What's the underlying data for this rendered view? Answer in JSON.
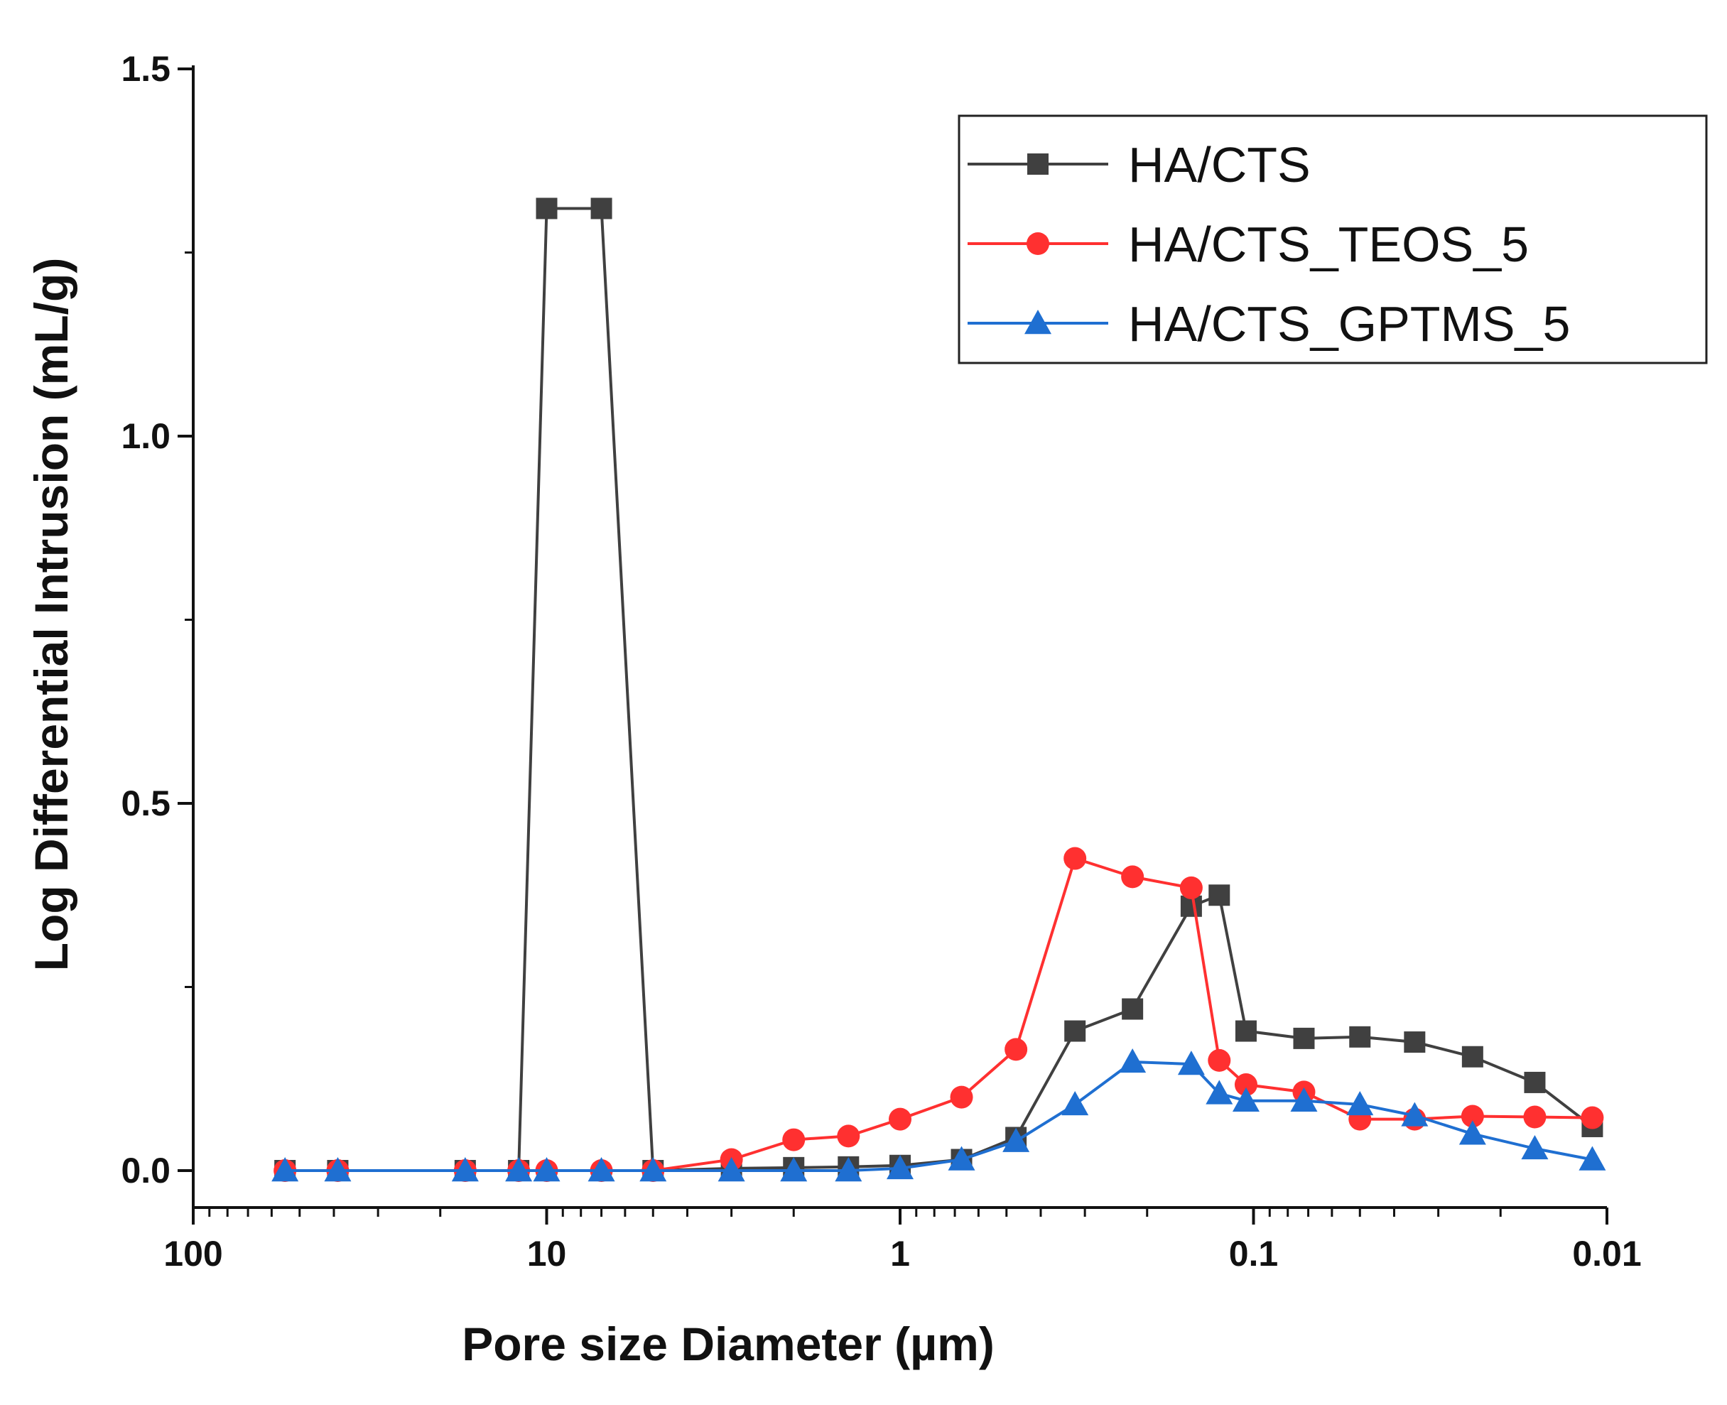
{
  "chart_data": {
    "type": "line",
    "xlabel": "Pore size Diameter (µm)",
    "ylabel": "Log Differential Intrusion (mL/g)",
    "x_scale": "log",
    "x_reversed": true,
    "xlim": [
      100,
      0.01
    ],
    "ylim": [
      -0.05,
      1.5
    ],
    "x_ticks": [
      {
        "value": 100,
        "label": "100"
      },
      {
        "value": 10,
        "label": "10"
      },
      {
        "value": 1,
        "label": "1"
      },
      {
        "value": 0.1,
        "label": "0.1"
      },
      {
        "value": 0.01,
        "label": "0.01"
      }
    ],
    "y_ticks": [
      {
        "value": 0.0,
        "label": "0.0"
      },
      {
        "value": 0.5,
        "label": "0.5"
      },
      {
        "value": 1.0,
        "label": "1.0"
      },
      {
        "value": 1.5,
        "label": "1.5"
      }
    ],
    "grid": false,
    "legend_position": "top-right",
    "series": [
      {
        "name": "HA/CTS",
        "color": "#404040",
        "marker": "square",
        "points": [
          [
            55,
            0.0
          ],
          [
            39,
            0.0
          ],
          [
            17,
            0.0
          ],
          [
            12,
            0.0
          ],
          [
            10,
            1.31
          ],
          [
            7,
            1.31
          ],
          [
            5,
            0.0
          ],
          [
            3,
            0.003
          ],
          [
            2,
            0.004
          ],
          [
            1.4,
            0.005
          ],
          [
            1.0,
            0.007
          ],
          [
            0.67,
            0.015
          ],
          [
            0.47,
            0.045
          ],
          [
            0.32,
            0.19
          ],
          [
            0.22,
            0.22
          ],
          [
            0.15,
            0.36
          ],
          [
            0.125,
            0.375
          ],
          [
            0.105,
            0.19
          ],
          [
            0.072,
            0.18
          ],
          [
            0.05,
            0.182
          ],
          [
            0.035,
            0.175
          ],
          [
            0.024,
            0.155
          ],
          [
            0.016,
            0.12
          ],
          [
            0.011,
            0.06
          ]
        ]
      },
      {
        "name": "HA/CTS_TEOS_5",
        "color": "#ff3030",
        "marker": "circle",
        "points": [
          [
            55,
            0.0
          ],
          [
            39,
            0.0
          ],
          [
            17,
            0.0
          ],
          [
            12,
            0.0
          ],
          [
            10,
            0.0
          ],
          [
            7,
            0.0
          ],
          [
            5,
            0.0
          ],
          [
            3,
            0.015
          ],
          [
            2,
            0.042
          ],
          [
            1.4,
            0.047
          ],
          [
            1.0,
            0.07
          ],
          [
            0.67,
            0.1
          ],
          [
            0.47,
            0.165
          ],
          [
            0.32,
            0.425
          ],
          [
            0.22,
            0.4
          ],
          [
            0.15,
            0.385
          ],
          [
            0.125,
            0.15
          ],
          [
            0.105,
            0.117
          ],
          [
            0.072,
            0.107
          ],
          [
            0.05,
            0.07
          ],
          [
            0.035,
            0.07
          ],
          [
            0.024,
            0.074
          ],
          [
            0.016,
            0.073
          ],
          [
            0.011,
            0.072
          ]
        ]
      },
      {
        "name": "HA/CTS_GPTMS_5",
        "color": "#1f6fd1",
        "marker": "triangle",
        "points": [
          [
            55,
            0.0
          ],
          [
            39,
            0.0
          ],
          [
            17,
            0.0
          ],
          [
            12,
            0.0
          ],
          [
            10,
            0.0
          ],
          [
            7,
            0.0
          ],
          [
            5,
            0.0
          ],
          [
            3,
            0.0
          ],
          [
            2,
            0.0
          ],
          [
            1.4,
            0.0
          ],
          [
            1.0,
            0.003
          ],
          [
            0.67,
            0.015
          ],
          [
            0.47,
            0.04
          ],
          [
            0.32,
            0.09
          ],
          [
            0.22,
            0.148
          ],
          [
            0.15,
            0.145
          ],
          [
            0.125,
            0.105
          ],
          [
            0.105,
            0.095
          ],
          [
            0.072,
            0.095
          ],
          [
            0.05,
            0.09
          ],
          [
            0.035,
            0.075
          ],
          [
            0.024,
            0.05
          ],
          [
            0.016,
            0.03
          ],
          [
            0.011,
            0.015
          ]
        ]
      }
    ]
  }
}
